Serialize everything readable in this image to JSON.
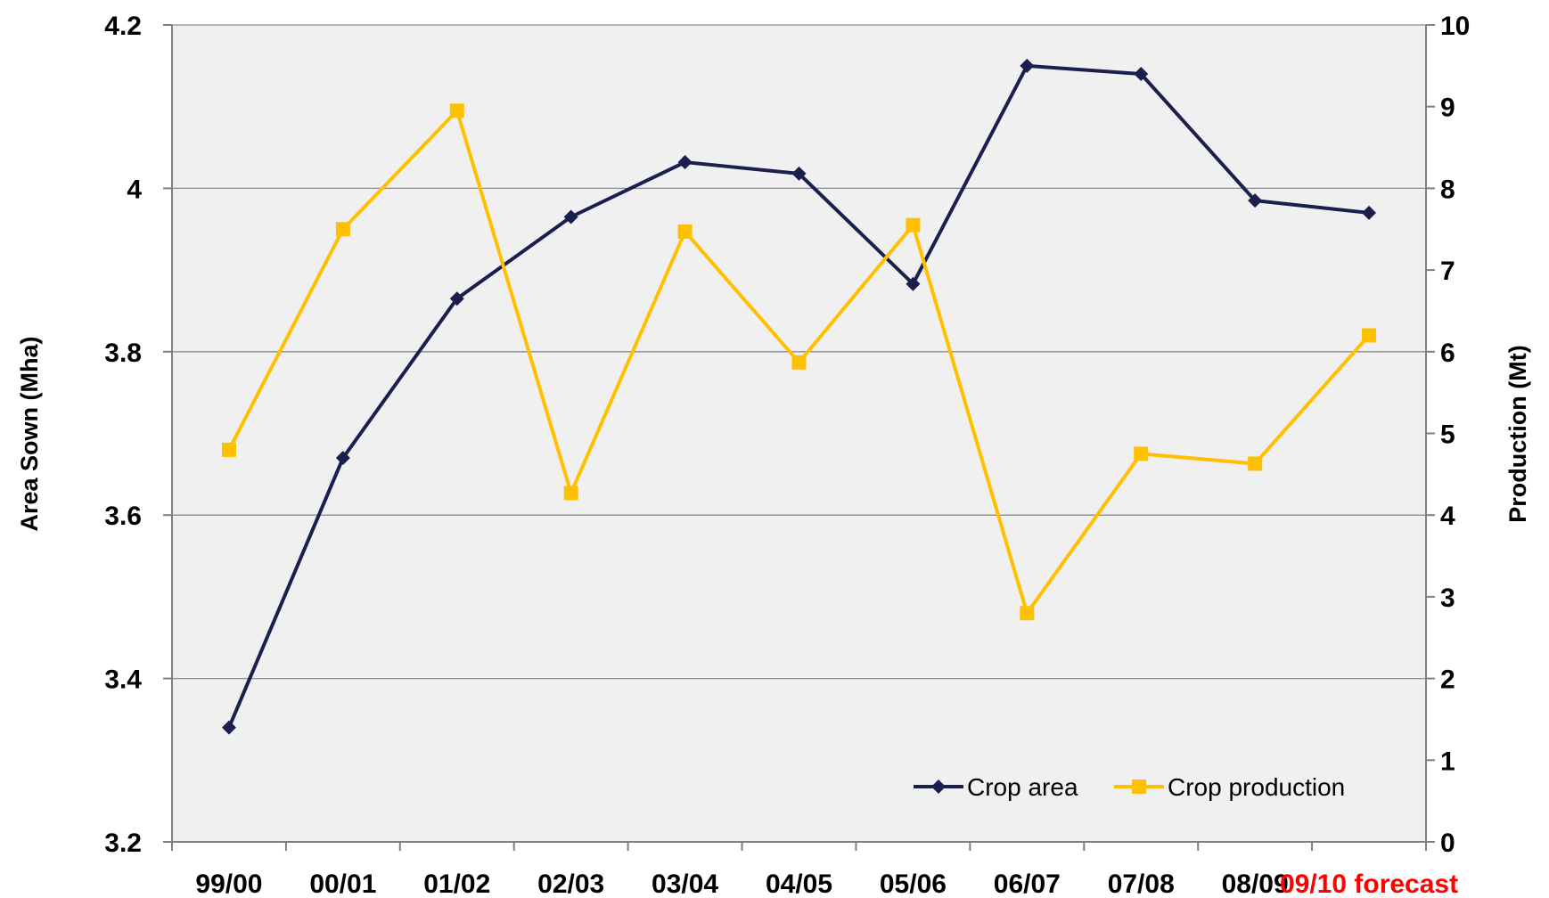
{
  "chart_data": {
    "type": "line",
    "categories": [
      "99/00",
      "00/01",
      "01/02",
      "02/03",
      "03/04",
      "04/05",
      "05/06",
      "06/07",
      "07/08",
      "08/09",
      "09/10 forecast"
    ],
    "highlight_category_index": 10,
    "highlight_color": "#ff0000",
    "series": [
      {
        "name": "Crop area",
        "axis": "left",
        "color": "#1a1f4f",
        "marker": "diamond",
        "values": [
          3.34,
          3.67,
          3.865,
          3.965,
          4.032,
          4.018,
          3.883,
          4.15,
          4.14,
          3.985,
          3.97
        ]
      },
      {
        "name": "Crop production",
        "axis": "right",
        "color": "#ffc000",
        "marker": "square",
        "values": [
          4.8,
          7.5,
          8.95,
          4.27,
          7.47,
          5.87,
          7.55,
          2.8,
          4.75,
          4.63,
          6.2
        ]
      }
    ],
    "ylabel": "Area Sown (Mha)",
    "y2label": "Production (Mt)",
    "ylim": [
      3.2,
      4.2
    ],
    "yticks": [
      "3.2",
      "3.4",
      "3.6",
      "3.8",
      "4",
      "4.2"
    ],
    "y2lim": [
      0,
      10
    ],
    "y2ticks": [
      "0",
      "1",
      "2",
      "3",
      "4",
      "5",
      "6",
      "7",
      "8",
      "9",
      "10"
    ],
    "grid": true,
    "legend_position": "bottom-right",
    "plot_background": "#f0f0f0"
  }
}
